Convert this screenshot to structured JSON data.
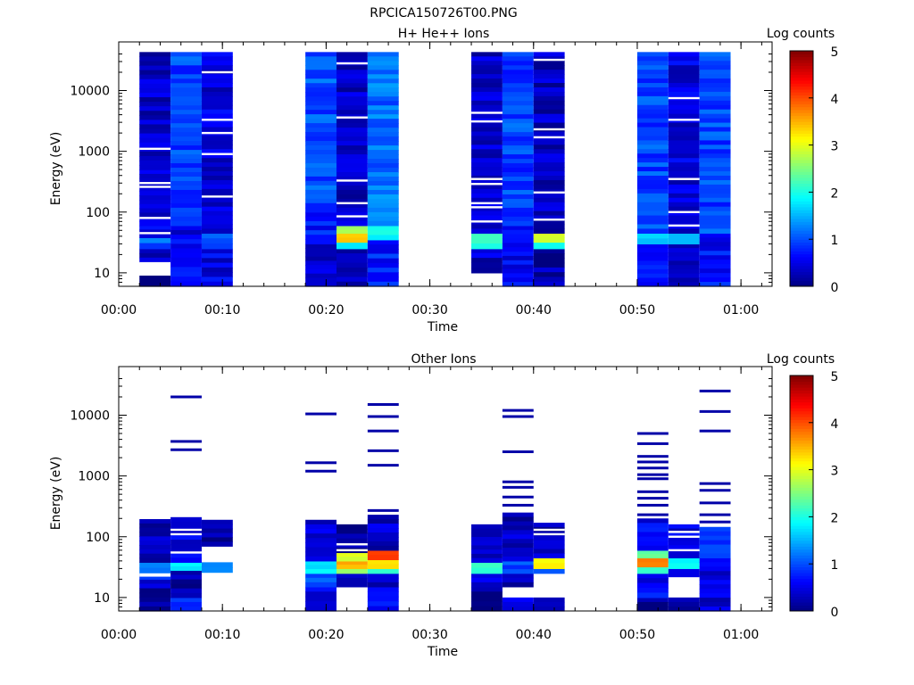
{
  "figure_title": "RPCICA150726T00.PNG",
  "colormap": {
    "stops": [
      "#00007f",
      "#0000ff",
      "#007fff",
      "#00ffff",
      "#7fff7f",
      "#ffff00",
      "#ff7f00",
      "#ff0000",
      "#7f0000"
    ]
  },
  "chart_data": [
    {
      "type": "heatmap",
      "title": "H+ He++ Ions",
      "xlabel": "Time",
      "ylabel": "Energy (eV)",
      "y_scale": "log",
      "xlim": [
        "00:00",
        "01:03"
      ],
      "ylim": [
        6,
        45000
      ],
      "x_ticks": [
        "00:00",
        "00:10",
        "00:20",
        "00:30",
        "00:40",
        "00:50",
        "01:00"
      ],
      "y_ticks": [
        "10",
        "100",
        "1000",
        "10000"
      ],
      "colorbar": {
        "label": "Log counts",
        "range": [
          0,
          5
        ],
        "ticks": [
          "0",
          "1",
          "2",
          "3",
          "4",
          "5"
        ]
      },
      "time_bins": [
        {
          "start": "00:02",
          "end": "00:05",
          "blocks": [
            {
              "low": 6,
              "high": 9,
              "value": 0.1
            },
            {
              "low": 15,
              "high": 25,
              "value": 0.4
            },
            {
              "low": 25,
              "high": 38,
              "value": 1.1
            },
            {
              "low": 38,
              "high": 60,
              "value": 0.6
            },
            {
              "low": 60,
              "high": 500,
              "value": 0.45
            },
            {
              "low": 500,
              "high": 43000,
              "value": 0.35
            }
          ],
          "gaps": [
            {
              "low": 9,
              "high": 15
            }
          ]
        },
        {
          "start": "00:05",
          "end": "00:08",
          "blocks": [
            {
              "low": 6,
              "high": 15,
              "value": 0.7
            },
            {
              "low": 15,
              "high": 60,
              "value": 0.55
            },
            {
              "low": 60,
              "high": 43000,
              "value": 0.95
            }
          ],
          "gaps": []
        },
        {
          "start": "00:08",
          "end": "00:11",
          "blocks": [
            {
              "low": 6,
              "high": 25,
              "value": 0.5
            },
            {
              "low": 25,
              "high": 45,
              "value": 1.0
            },
            {
              "low": 45,
              "high": 43000,
              "value": 0.45
            }
          ],
          "gaps": []
        },
        {
          "start": "00:18",
          "end": "00:21",
          "blocks": [
            {
              "low": 6,
              "high": 30,
              "value": 0.35
            },
            {
              "low": 30,
              "high": 100,
              "value": 0.75
            },
            {
              "low": 100,
              "high": 43000,
              "value": 1.0
            }
          ],
          "gaps": []
        },
        {
          "start": "00:21",
          "end": "00:24",
          "blocks": [
            {
              "low": 6,
              "high": 25,
              "value": 0.25
            },
            {
              "low": 25,
              "high": 32,
              "value": 1.8
            },
            {
              "low": 32,
              "high": 45,
              "value": 3.3
            },
            {
              "low": 45,
              "high": 60,
              "value": 2.6
            },
            {
              "low": 60,
              "high": 43000,
              "value": 0.35
            }
          ],
          "gaps": []
        },
        {
          "start": "00:24",
          "end": "00:27",
          "blocks": [
            {
              "low": 6,
              "high": 35,
              "value": 0.75
            },
            {
              "low": 35,
              "high": 60,
              "value": 1.9
            },
            {
              "low": 60,
              "high": 43000,
              "value": 1.15
            }
          ],
          "gaps": []
        },
        {
          "start": "00:34",
          "end": "00:37",
          "blocks": [
            {
              "low": 10,
              "high": 18,
              "value": 0.2
            },
            {
              "low": 18,
              "high": 25,
              "value": 0.55
            },
            {
              "low": 25,
              "high": 45,
              "value": 2.1
            },
            {
              "low": 45,
              "high": 43000,
              "value": 0.35
            }
          ],
          "gaps": []
        },
        {
          "start": "00:37",
          "end": "00:40",
          "blocks": [
            {
              "low": 6,
              "high": 60,
              "value": 0.6
            },
            {
              "low": 60,
              "high": 43000,
              "value": 0.95
            }
          ],
          "gaps": []
        },
        {
          "start": "00:40",
          "end": "00:43",
          "blocks": [
            {
              "low": 6,
              "high": 25,
              "value": 0.2
            },
            {
              "low": 25,
              "high": 32,
              "value": 1.9
            },
            {
              "low": 32,
              "high": 45,
              "value": 3.0
            },
            {
              "low": 45,
              "high": 43000,
              "value": 0.3
            }
          ],
          "gaps": []
        },
        {
          "start": "00:50",
          "end": "00:53",
          "blocks": [
            {
              "low": 6,
              "high": 30,
              "value": 0.65
            },
            {
              "low": 30,
              "high": 45,
              "value": 1.6
            },
            {
              "low": 45,
              "high": 43000,
              "value": 0.95
            }
          ],
          "gaps": []
        },
        {
          "start": "00:53",
          "end": "00:56",
          "blocks": [
            {
              "low": 6,
              "high": 30,
              "value": 0.3
            },
            {
              "low": 30,
              "high": 45,
              "value": 1.5
            },
            {
              "low": 45,
              "high": 43000,
              "value": 0.45
            }
          ],
          "gaps": []
        },
        {
          "start": "00:56",
          "end": "00:59",
          "blocks": [
            {
              "low": 6,
              "high": 45,
              "value": 0.65
            },
            {
              "low": 45,
              "high": 43000,
              "value": 0.95
            }
          ],
          "gaps": []
        }
      ],
      "empty_energy_lines": [
        {
          "start": "00:02",
          "end": "00:05",
          "energies": [
            1100,
            300,
            260,
            80,
            45
          ]
        },
        {
          "start": "00:08",
          "end": "00:11",
          "energies": [
            20000,
            3300,
            2000,
            900,
            180
          ]
        },
        {
          "start": "00:21",
          "end": "00:24",
          "energies": [
            28000,
            3600,
            330,
            140,
            85
          ]
        },
        {
          "start": "00:34",
          "end": "00:37",
          "energies": [
            4300,
            3100,
            350,
            290,
            140,
            120,
            70
          ]
        },
        {
          "start": "00:40",
          "end": "00:43",
          "energies": [
            32000,
            2300,
            1700,
            210,
            75
          ]
        },
        {
          "start": "00:53",
          "end": "00:56",
          "energies": [
            7500,
            3300,
            350,
            100,
            60
          ]
        }
      ]
    },
    {
      "type": "heatmap",
      "title": "Other Ions",
      "xlabel": "Time",
      "ylabel": "Energy (eV)",
      "y_scale": "log",
      "xlim": [
        "00:00",
        "01:03"
      ],
      "ylim": [
        6,
        45000
      ],
      "x_ticks": [
        "00:00",
        "00:10",
        "00:20",
        "00:30",
        "00:40",
        "00:50",
        "01:00"
      ],
      "y_ticks": [
        "10",
        "100",
        "1000",
        "10000"
      ],
      "colorbar": {
        "label": "Log counts",
        "range": [
          0,
          5
        ],
        "ticks": [
          "0",
          "1",
          "2",
          "3",
          "4",
          "5"
        ]
      },
      "time_bins": [
        {
          "start": "00:02",
          "end": "00:05",
          "blocks": [
            {
              "low": 6,
              "high": 20,
              "value": 0.25
            },
            {
              "low": 20,
              "high": 25,
              "value": 0.7
            },
            {
              "low": 25,
              "high": 38,
              "value": 1.1
            },
            {
              "low": 38,
              "high": 195,
              "value": 0.3
            }
          ],
          "gaps": [
            {
              "low": 22,
              "high": 25
            }
          ]
        },
        {
          "start": "00:05",
          "end": "00:08",
          "blocks": [
            {
              "low": 6,
              "high": 10,
              "value": 0.85
            },
            {
              "low": 10,
              "high": 28,
              "value": 0.2
            },
            {
              "low": 28,
              "high": 38,
              "value": 1.8
            },
            {
              "low": 38,
              "high": 210,
              "value": 0.45
            }
          ],
          "gaps": []
        },
        {
          "start": "00:08",
          "end": "00:11",
          "blocks": [
            {
              "low": 26,
              "high": 38,
              "value": 1.2
            },
            {
              "low": 70,
              "high": 190,
              "value": 0.15
            }
          ],
          "gaps": []
        },
        {
          "start": "00:18",
          "end": "00:21",
          "blocks": [
            {
              "low": 6,
              "high": 15,
              "value": 0.6
            },
            {
              "low": 15,
              "high": 25,
              "value": 0.9
            },
            {
              "low": 25,
              "high": 40,
              "value": 1.8
            },
            {
              "low": 40,
              "high": 190,
              "value": 0.45
            }
          ],
          "gaps": []
        },
        {
          "start": "00:21",
          "end": "00:24",
          "blocks": [
            {
              "low": 15,
              "high": 25,
              "value": 0.3
            },
            {
              "low": 25,
              "high": 30,
              "value": 2.6
            },
            {
              "low": 30,
              "high": 40,
              "value": 3.5
            },
            {
              "low": 40,
              "high": 55,
              "value": 2.9
            },
            {
              "low": 55,
              "high": 160,
              "value": 0.2
            }
          ],
          "gaps": []
        },
        {
          "start": "00:24",
          "end": "00:27",
          "blocks": [
            {
              "low": 6,
              "high": 15,
              "value": 0.55
            },
            {
              "low": 15,
              "high": 25,
              "value": 0.25
            },
            {
              "low": 25,
              "high": 30,
              "value": 2.0
            },
            {
              "low": 30,
              "high": 42,
              "value": 3.3
            },
            {
              "low": 42,
              "high": 60,
              "value": 4.0
            },
            {
              "low": 60,
              "high": 230,
              "value": 0.35
            }
          ],
          "gaps": []
        },
        {
          "start": "00:34",
          "end": "00:37",
          "blocks": [
            {
              "low": 6,
              "high": 15,
              "value": 0.15
            },
            {
              "low": 15,
              "high": 25,
              "value": 0.45
            },
            {
              "low": 25,
              "high": 38,
              "value": 2.1
            },
            {
              "low": 38,
              "high": 160,
              "value": 0.45
            }
          ],
          "gaps": []
        },
        {
          "start": "00:37",
          "end": "00:40",
          "blocks": [
            {
              "low": 6,
              "high": 10,
              "value": 0.5
            },
            {
              "low": 15,
              "high": 25,
              "value": 0.25
            },
            {
              "low": 25,
              "high": 40,
              "value": 1.0
            },
            {
              "low": 40,
              "high": 250,
              "value": 0.3
            }
          ],
          "gaps": []
        },
        {
          "start": "00:40",
          "end": "00:43",
          "blocks": [
            {
              "low": 6,
              "high": 10,
              "value": 0.15
            },
            {
              "low": 25,
              "high": 30,
              "value": 1.3
            },
            {
              "low": 30,
              "high": 45,
              "value": 3.1
            },
            {
              "low": 45,
              "high": 170,
              "value": 0.3
            }
          ],
          "gaps": []
        },
        {
          "start": "00:50",
          "end": "00:53",
          "blocks": [
            {
              "low": 6,
              "high": 10,
              "value": 0.15
            },
            {
              "low": 10,
              "high": 25,
              "value": 0.6
            },
            {
              "low": 25,
              "high": 32,
              "value": 2.2
            },
            {
              "low": 32,
              "high": 45,
              "value": 3.7
            },
            {
              "low": 45,
              "high": 60,
              "value": 2.4
            },
            {
              "low": 60,
              "high": 200,
              "value": 0.55
            }
          ],
          "gaps": []
        },
        {
          "start": "00:53",
          "end": "00:56",
          "blocks": [
            {
              "low": 6,
              "high": 10,
              "value": 0.15
            },
            {
              "low": 22,
              "high": 30,
              "value": 0.35
            },
            {
              "low": 30,
              "high": 45,
              "value": 1.9
            },
            {
              "low": 45,
              "high": 160,
              "value": 0.5
            }
          ],
          "gaps": []
        },
        {
          "start": "00:56",
          "end": "00:59",
          "blocks": [
            {
              "low": 6,
              "high": 45,
              "value": 0.45
            },
            {
              "low": 45,
              "high": 145,
              "value": 0.8
            }
          ],
          "gaps": []
        }
      ],
      "sparse_lines": [
        {
          "start": "00:05",
          "end": "00:08",
          "value": 0.2,
          "energies": [
            20000,
            3700,
            2700
          ]
        },
        {
          "start": "00:18",
          "end": "00:21",
          "value": 0.2,
          "energies": [
            10500,
            1650,
            1200
          ]
        },
        {
          "start": "00:24",
          "end": "00:27",
          "value": 0.2,
          "energies": [
            15000,
            9500,
            5500,
            2600,
            1500,
            270
          ]
        },
        {
          "start": "00:37",
          "end": "00:40",
          "value": 0.2,
          "energies": [
            12000,
            9500,
            2500,
            800,
            650,
            450,
            330
          ]
        },
        {
          "start": "00:50",
          "end": "00:53",
          "value": 0.2,
          "energies": [
            5000,
            3400,
            2100,
            1700,
            1350,
            1050,
            900,
            550,
            430,
            330,
            230
          ]
        },
        {
          "start": "00:56",
          "end": "00:59",
          "value": 0.2,
          "energies": [
            25000,
            11500,
            5500,
            750,
            580,
            360,
            230,
            175
          ]
        }
      ],
      "empty_energy_lines": [
        {
          "start": "00:05",
          "end": "00:08",
          "energies": [
            130,
            110,
            55
          ]
        },
        {
          "start": "00:21",
          "end": "00:24",
          "energies": [
            75,
            60
          ]
        },
        {
          "start": "00:40",
          "end": "00:43",
          "energies": [
            130,
            110
          ]
        },
        {
          "start": "00:53",
          "end": "00:56",
          "energies": [
            120,
            100,
            60
          ]
        }
      ]
    }
  ]
}
